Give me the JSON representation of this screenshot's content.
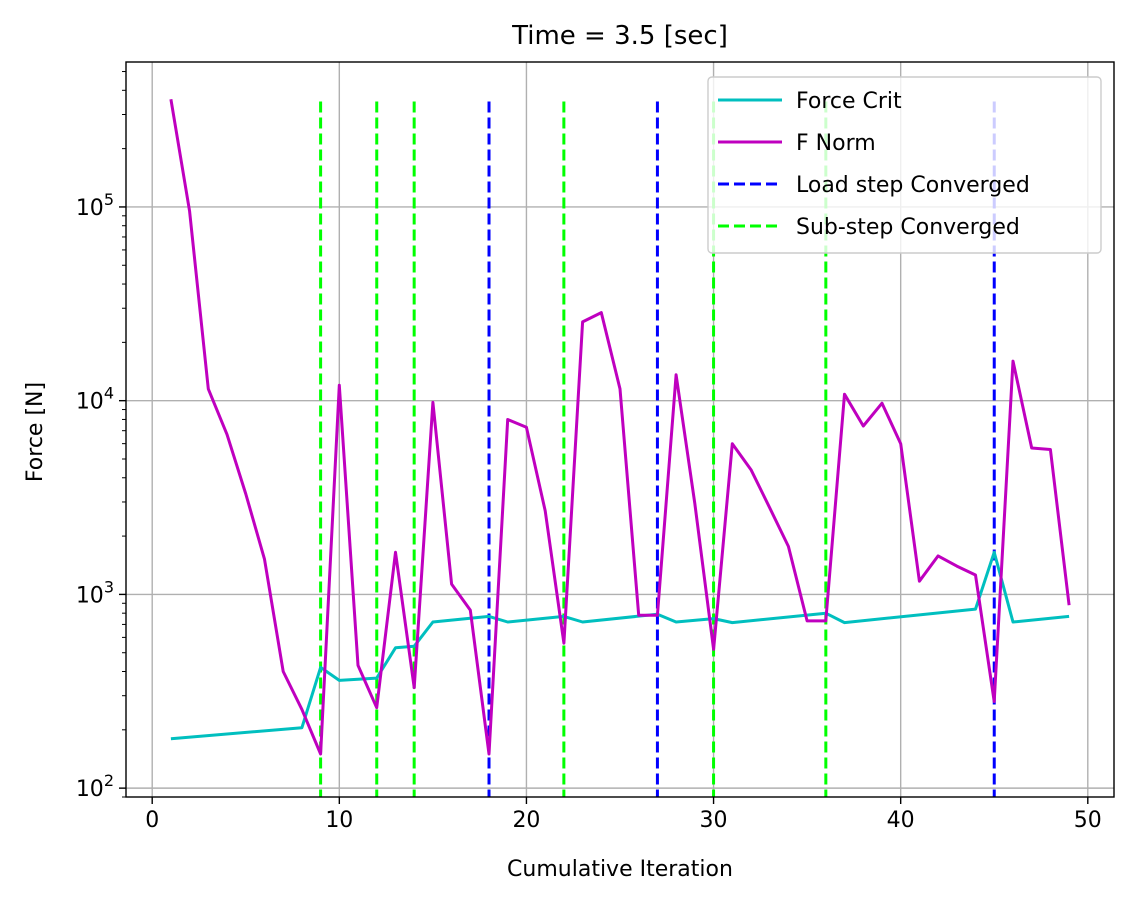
{
  "chart_data": {
    "type": "line",
    "title": "Time = 3.5 [sec]",
    "xlabel": "Cumulative Iteration",
    "ylabel": "Force [N]",
    "xscale": "linear",
    "yscale": "log",
    "xlim": [
      -1.4,
      51.4
    ],
    "ylim": [
      90,
      560000
    ],
    "xticks": [
      0,
      10,
      20,
      30,
      40,
      50
    ],
    "yticks": [
      {
        "value": 100,
        "base": "10",
        "exp": "2"
      },
      {
        "value": 1000,
        "base": "10",
        "exp": "3"
      },
      {
        "value": 10000,
        "base": "10",
        "exp": "4"
      },
      {
        "value": 100000,
        "base": "10",
        "exp": "5"
      }
    ],
    "grid": true,
    "legend_position": "top-right",
    "series": [
      {
        "name": "Force Crit",
        "color": "#00bfbf",
        "style": "solid",
        "x": [
          1,
          8,
          9,
          10,
          12,
          13,
          14,
          15,
          18,
          19,
          22,
          23,
          27,
          28,
          30,
          31,
          36,
          37,
          44,
          45,
          46,
          49
        ],
        "y": [
          180,
          205,
          420,
          360,
          370,
          530,
          540,
          720,
          770,
          720,
          770,
          720,
          790,
          720,
          750,
          715,
          800,
          715,
          840,
          1650,
          720,
          770
        ]
      },
      {
        "name": "F Norm",
        "color": "#bf00bf",
        "style": "solid",
        "x": [
          1,
          2,
          3,
          4,
          5,
          6,
          7,
          8,
          9,
          10,
          11,
          12,
          13,
          14,
          15,
          16,
          17,
          18,
          19,
          20,
          21,
          22,
          23,
          24,
          25,
          26,
          27,
          28,
          29,
          30,
          31,
          32,
          33,
          34,
          35,
          36,
          37,
          38,
          39,
          40,
          41,
          42,
          43,
          44,
          45,
          46,
          47,
          48,
          49
        ],
        "y": [
          360000,
          95000,
          11500,
          6700,
          3300,
          1520,
          400,
          255,
          150,
          12000,
          430,
          260,
          1650,
          330,
          9800,
          1130,
          830,
          150,
          8000,
          7300,
          2700,
          560,
          25500,
          28500,
          11500,
          780,
          780,
          13600,
          2950,
          520,
          6000,
          4400,
          2800,
          1770,
          730,
          730,
          10800,
          7400,
          9700,
          6000,
          1170,
          1580,
          1400,
          1260,
          280,
          16000,
          5700,
          5600,
          880
        ]
      }
    ],
    "vlines": [
      {
        "name": "Load step Converged",
        "color": "#0000ff",
        "style": "dashed",
        "x": [
          18,
          27,
          45
        ],
        "y_top": 350000,
        "y_bottom": 90
      },
      {
        "name": "Sub-step Converged",
        "color": "#00ff00",
        "style": "dashed",
        "x": [
          9,
          12,
          14,
          22,
          30,
          36
        ],
        "y_top": 350000,
        "y_bottom": 90
      }
    ],
    "legend": [
      "Force Crit",
      "F Norm",
      "Load step Converged",
      "Sub-step Converged"
    ]
  }
}
